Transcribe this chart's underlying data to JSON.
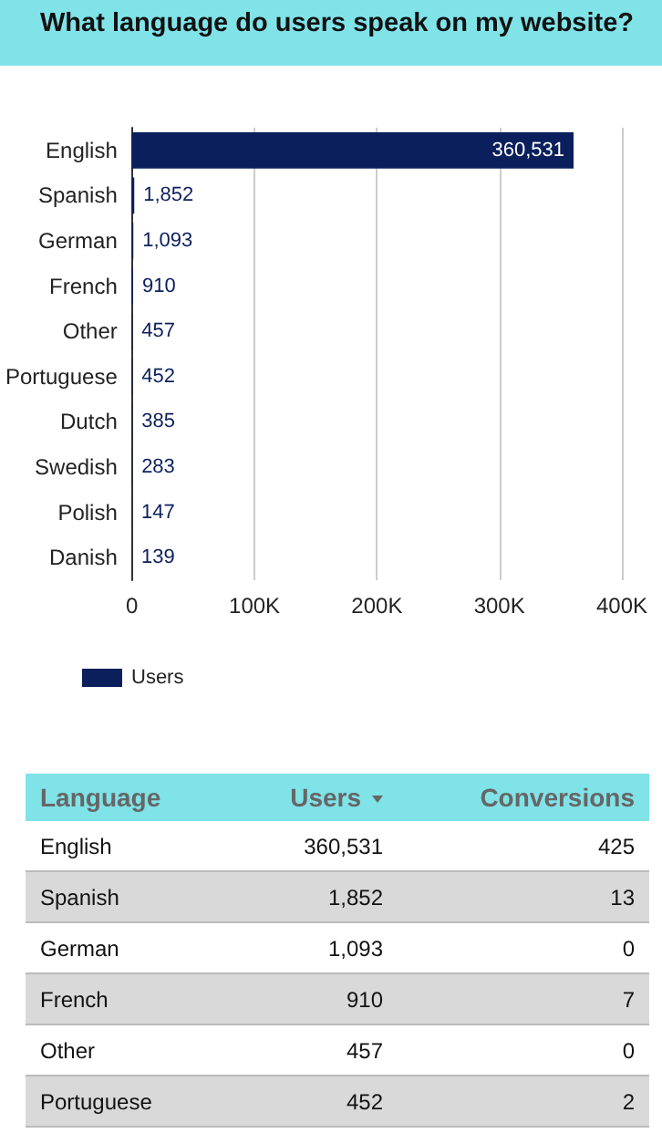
{
  "chart_data": [
    {
      "type": "bar",
      "title": "What language do users speak on my website?",
      "orientation": "horizontal",
      "categories": [
        "English",
        "Spanish",
        "German",
        "French",
        "Other",
        "Portuguese",
        "Dutch",
        "Swedish",
        "Polish",
        "Danish"
      ],
      "series": [
        {
          "name": "Users",
          "color": "#0a1f5c",
          "values": [
            360531,
            1852,
            1093,
            910,
            457,
            452,
            385,
            283,
            147,
            139
          ],
          "value_labels": [
            "360,531",
            "1,852",
            "1,093",
            "910",
            "457",
            "452",
            "385",
            "283",
            "147",
            "139"
          ]
        }
      ],
      "xlim": [
        0,
        400000
      ],
      "xticks": [
        0,
        {
          "value": 100000,
          "label": "100K"
        },
        {
          "value": 200000,
          "label": "200K"
        },
        {
          "value": 300000,
          "label": "300K"
        },
        {
          "value": 400000,
          "label": "400K"
        }
      ],
      "grid": "x",
      "legend": "bottom left"
    },
    {
      "type": "other",
      "xlabel": "Language",
      "categories": [
        "English",
        "Spanish",
        "German",
        "French",
        "Other",
        "Portuguese"
      ],
      "series": [
        {
          "name": "Users",
          "values": [
            360531,
            1852,
            1093,
            910,
            457,
            452
          ],
          "value_labels": [
            "360,531",
            "1,852",
            "1,093",
            "910",
            "457",
            "452"
          ]
        },
        {
          "name": "Conversions",
          "values": [
            425,
            13,
            0,
            7,
            0,
            2
          ],
          "value_labels": [
            "425",
            "13",
            "0",
            "7",
            "0",
            "2"
          ]
        }
      ]
    }
  ]
}
